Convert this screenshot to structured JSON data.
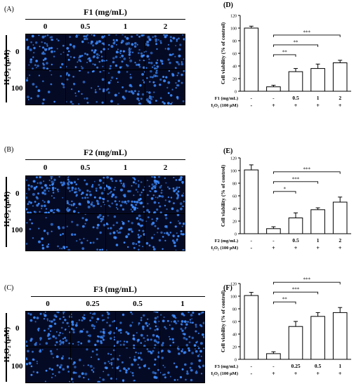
{
  "panels": [
    {
      "micro_letter": "(A)",
      "chart_letter": "(D)",
      "factor_label": "F1 (mg/mL)",
      "columns": [
        "0",
        "0.5",
        "1",
        "2"
      ],
      "rows": [
        "0",
        "100"
      ],
      "row_axis_label": "H₂O₂ (μM)",
      "tile_colors": {
        "background": "#050a24",
        "cell": "#3d8bff"
      },
      "cell_density": [
        [
          0.55,
          0.6,
          0.6,
          0.55
        ],
        [
          0.2,
          0.3,
          0.35,
          0.5
        ]
      ]
    },
    {
      "micro_letter": "(B)",
      "chart_letter": "(E)",
      "factor_label": "F2 (mg/mL)",
      "columns": [
        "0",
        "0.5",
        "1",
        "2"
      ],
      "rows": [
        "0",
        "100"
      ],
      "row_axis_label": "H₂O₂ (μM)",
      "tile_colors": {
        "background": "#050a24",
        "cell": "#3d8bff"
      },
      "cell_density": [
        [
          0.7,
          0.7,
          0.7,
          0.7
        ],
        [
          0.25,
          0.3,
          0.45,
          0.45
        ]
      ]
    },
    {
      "micro_letter": "(C)",
      "chart_letter": "(F)",
      "factor_label": "F3 (mg/mL)",
      "columns": [
        "0",
        "0.25",
        "0.5",
        "1"
      ],
      "rows": [
        "0",
        "100"
      ],
      "row_axis_label": "H₂O₂ (μM)",
      "tile_colors": {
        "background": "#050a24",
        "cell": "#3d8bff"
      },
      "cell_density": [
        [
          0.65,
          0.6,
          0.6,
          0.6
        ],
        [
          0.35,
          0.4,
          0.45,
          0.45
        ]
      ]
    }
  ],
  "chart_data": [
    {
      "type": "bar",
      "panel": "(D)",
      "ylabel": "Cell viability (% of control)",
      "ylim": [
        0,
        120
      ],
      "yticks": [
        0,
        20,
        40,
        60,
        80,
        100,
        120
      ],
      "values": [
        100,
        7,
        31,
        36,
        45
      ],
      "errors": [
        3,
        2.5,
        5,
        7,
        4
      ],
      "row1_label": "F1 (mg/mL)",
      "row1": [
        "-",
        "-",
        "0.5",
        "1",
        "2"
      ],
      "row2_label": "H₂O₂ (100 μM)",
      "row2": [
        "-",
        "+",
        "+",
        "+",
        "+"
      ],
      "significance": [
        {
          "from": 1,
          "to": 2,
          "label": "**"
        },
        {
          "from": 1,
          "to": 3,
          "label": "**"
        },
        {
          "from": 1,
          "to": 4,
          "label": "***"
        }
      ],
      "bar_color": "#ffffff"
    },
    {
      "type": "bar",
      "panel": "(E)",
      "ylabel": "Cell viability (% of control)",
      "ylim": [
        0,
        120
      ],
      "yticks": [
        0,
        20,
        40,
        60,
        80,
        100,
        120
      ],
      "values": [
        101,
        8,
        25,
        38,
        50
      ],
      "errors": [
        8,
        3,
        8,
        3,
        8
      ],
      "row1_label": "F2 (mg/mL)",
      "row1": [
        "-",
        "-",
        "0.5",
        "1",
        "2"
      ],
      "row2_label": "H₂O₂ (100 μM)",
      "row2": [
        "-",
        "+",
        "+",
        "+",
        "+"
      ],
      "significance": [
        {
          "from": 1,
          "to": 2,
          "label": "*"
        },
        {
          "from": 1,
          "to": 3,
          "label": "***"
        },
        {
          "from": 1,
          "to": 4,
          "label": "***"
        }
      ],
      "bar_color": "#ffffff"
    },
    {
      "type": "bar",
      "panel": "(F)",
      "ylabel": "Cell viability (% of control)",
      "ylim": [
        0,
        120
      ],
      "yticks": [
        0,
        20,
        40,
        60,
        80,
        100,
        120
      ],
      "values": [
        101,
        9,
        52,
        68,
        74
      ],
      "errors": [
        5,
        3,
        8,
        6,
        8
      ],
      "row1_label": "F3 (mg/mL)",
      "row1": [
        "-",
        "-",
        "0.25",
        "0.5",
        "1"
      ],
      "row2_label": "H₂O₂ (100 μM)",
      "row2": [
        "-",
        "+",
        "+",
        "+",
        "+"
      ],
      "significance": [
        {
          "from": 1,
          "to": 2,
          "label": "**"
        },
        {
          "from": 1,
          "to": 3,
          "label": "***"
        },
        {
          "from": 1,
          "to": 4,
          "label": "***"
        }
      ],
      "bar_color": "#ffffff"
    }
  ]
}
